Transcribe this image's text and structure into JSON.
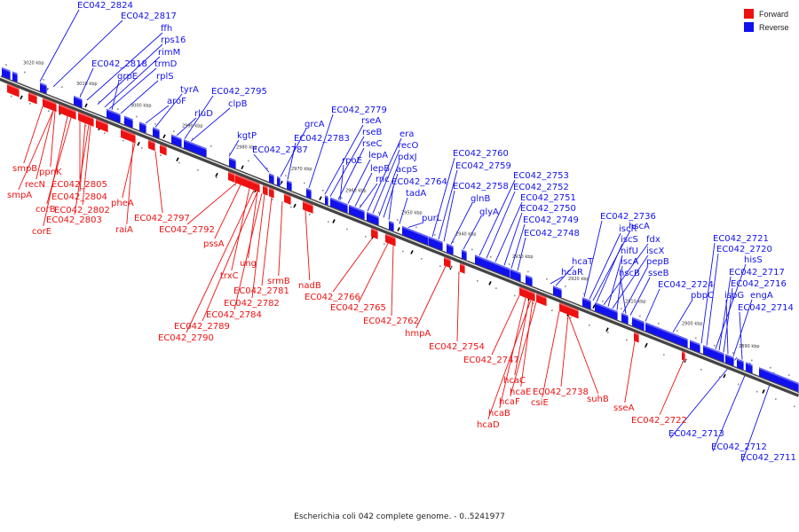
{
  "colors": {
    "forward": "#ee1111",
    "reverse": "#1111ee"
  },
  "legend": {
    "forward": "Forward",
    "reverse": "Reverse"
  },
  "caption": "Escherichia coli 042 complete genome. - 0..5241977",
  "kbp_ticks": [
    "3020 kbp",
    "3010 kbp",
    "3000 kbp",
    "2990 kbp",
    "2980 kbp",
    "2970 kbp",
    "2960 kbp",
    "2950 kbp",
    "2940 kbp",
    "2930 kbp",
    "2920 kbp",
    "2910 kbp",
    "2900 kbp",
    "2890 kbp"
  ],
  "reverse_labels": [
    "EC042_2824",
    "EC042_2817",
    "ffh",
    "rps16",
    "rimM",
    "trmD",
    "EC042_2818",
    "grpE",
    "rplS",
    "tyrA",
    "aroF",
    "EC042_2795",
    "rluD",
    "clpB",
    "kgtP",
    "EC042_2787",
    "grcA",
    "EC042_2783",
    "EC042_2779",
    "rseA",
    "rseB",
    "rseC",
    "rpoE",
    "lepA",
    "lepB",
    "rnc",
    "era",
    "recO",
    "pdxJ",
    "acpS",
    "EC042_2764",
    "tadA",
    "purL",
    "EC042_2760",
    "EC042_2759",
    "EC042_2758",
    "glnB",
    "glyA",
    "EC042_2753",
    "EC042_2752",
    "EC042_2751",
    "EC042_2750",
    "EC042_2749",
    "EC042_2748",
    "hcaT",
    "hcaR",
    "EC042_2736",
    "iscR",
    "hscA",
    "iscS",
    "fdx",
    "nifU",
    "iscX",
    "iscA",
    "pepB",
    "hscB",
    "sseB",
    "EC042_2724",
    "pbpC",
    "EC042_2721",
    "EC042_2720",
    "hisS",
    "EC042_2717",
    "EC042_2716",
    "ispG",
    "engA",
    "EC042_2714",
    "EC042_2713",
    "EC042_2712",
    "EC042_2711"
  ],
  "forward_labels": [
    "smpB",
    "ppnK",
    "recN",
    "smpA",
    "EC042_2805",
    "EC042_2804",
    "EC042_2802",
    "corB",
    "EC042_2803",
    "corE",
    "pheA",
    "raiA",
    "EC042_2797",
    "EC042_2792",
    "pssA",
    "trxC",
    "ung",
    "srmB",
    "EC042_2781",
    "EC042_2782",
    "EC042_2784",
    "EC042_2789",
    "EC042_2790",
    "nadB",
    "EC042_2766",
    "EC042_2765",
    "EC042_2762",
    "hmpA",
    "EC042_2754",
    "EC042_2747",
    "hcaC",
    "hcaE",
    "hcaF",
    "hcaB",
    "hcaD",
    "EC042_2738",
    "csiE",
    "suhB",
    "sseA",
    "EC042_2722"
  ]
}
